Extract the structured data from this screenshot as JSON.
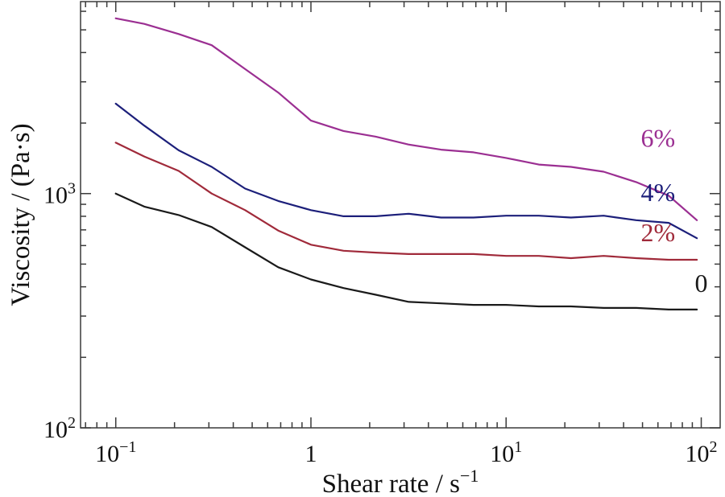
{
  "chart_data": {
    "type": "line",
    "xlabel": "Shear rate / s",
    "xlabel_sup": "−1",
    "ylabel": "Viscosity / (Pa·s)",
    "x_scale": "log",
    "y_scale": "log",
    "xlim": [
      0.066,
      125
    ],
    "ylim": [
      100,
      6600
    ],
    "x_ticks": [
      {
        "value": 0.1,
        "base": "10",
        "exp": "−1"
      },
      {
        "value": 1,
        "base": "1",
        "exp": ""
      },
      {
        "value": 10,
        "base": "10",
        "exp": "1"
      },
      {
        "value": 100,
        "base": "10",
        "exp": "2"
      }
    ],
    "y_ticks": [
      {
        "value": 100,
        "base": "10",
        "exp": "2"
      },
      {
        "value": 1000,
        "base": "10",
        "exp": "3"
      }
    ],
    "grid": false,
    "series": [
      {
        "name": "6%",
        "color": "#9b2f92",
        "x": [
          0.1,
          0.14,
          0.21,
          0.31,
          0.46,
          0.68,
          1.0,
          1.47,
          2.15,
          3.16,
          4.64,
          6.81,
          10.0,
          14.7,
          21.5,
          31.6,
          46.4,
          68.1,
          95.0
        ],
        "y": [
          5600,
          5300,
          4800,
          4300,
          3400,
          2700,
          2050,
          1850,
          1750,
          1620,
          1540,
          1500,
          1420,
          1330,
          1300,
          1240,
          1120,
          980,
          770
        ]
      },
      {
        "name": "4%",
        "color": "#1c1f7a",
        "x": [
          0.1,
          0.14,
          0.21,
          0.31,
          0.46,
          0.68,
          1.0,
          1.47,
          2.15,
          3.16,
          4.64,
          6.81,
          10.0,
          14.7,
          21.5,
          31.6,
          46.4,
          68.1,
          95.0
        ],
        "y": [
          2420,
          1950,
          1530,
          1300,
          1050,
          930,
          850,
          800,
          800,
          820,
          790,
          790,
          805,
          805,
          790,
          805,
          770,
          750,
          645
        ]
      },
      {
        "name": "2%",
        "color": "#a02a3a",
        "x": [
          0.1,
          0.14,
          0.21,
          0.31,
          0.46,
          0.68,
          1.0,
          1.47,
          2.15,
          3.16,
          4.64,
          6.81,
          10.0,
          14.7,
          21.5,
          31.6,
          46.4,
          68.1,
          95.0
        ],
        "y": [
          1650,
          1440,
          1250,
          1000,
          850,
          695,
          605,
          570,
          560,
          552,
          552,
          552,
          542,
          542,
          530,
          542,
          530,
          522,
          522
        ]
      },
      {
        "name": "0",
        "color": "#1a1a1a",
        "x": [
          0.1,
          0.14,
          0.21,
          0.31,
          0.46,
          0.68,
          1.0,
          1.47,
          2.15,
          3.16,
          4.64,
          6.81,
          10.0,
          14.7,
          21.5,
          31.6,
          46.4,
          68.1,
          95.0
        ],
        "y": [
          1000,
          880,
          810,
          720,
          590,
          485,
          430,
          395,
          370,
          345,
          340,
          335,
          335,
          330,
          330,
          325,
          325,
          320,
          320
        ]
      }
    ]
  }
}
